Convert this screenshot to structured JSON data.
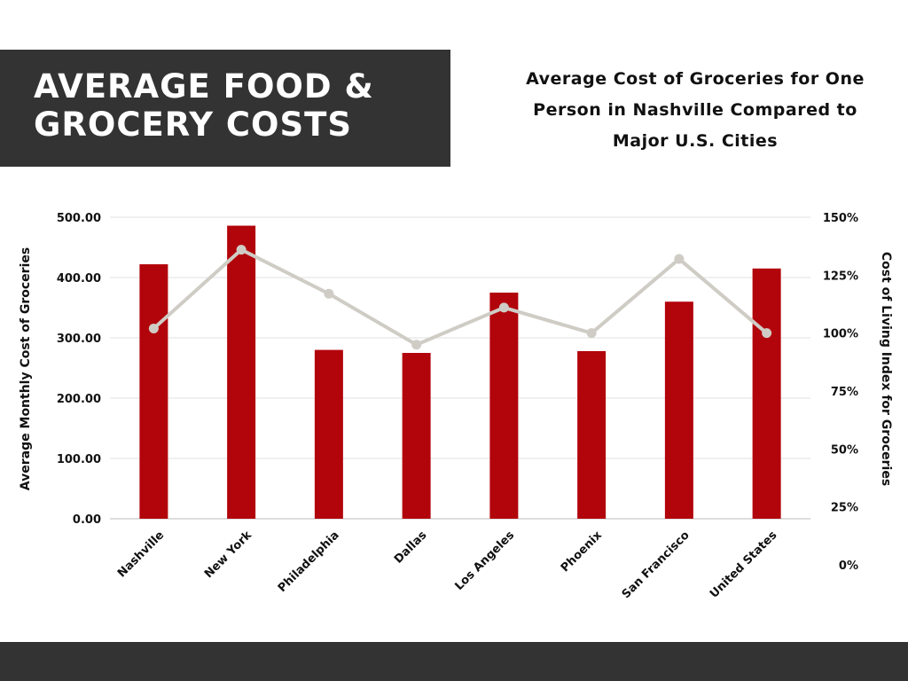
{
  "banner": {
    "line1": "AVERAGE FOOD &",
    "line2": "GROCERY COSTS"
  },
  "chart_title": {
    "line1": "Average Cost of Groceries for One",
    "line2": "Person in Nashville Compared to",
    "line3": "Major U.S. Cities"
  },
  "colors": {
    "bar": "#b2040b",
    "line": "#cfccc5",
    "banner_bg": "#333333"
  },
  "chart_data": {
    "type": "bar",
    "title": "Average Cost of Groceries for One Person in Nashville Compared to Major U.S. Cities",
    "categories": [
      "Nashville",
      "New York",
      "Philadelphia",
      "Dallas",
      "Los Angeles",
      "Phoenix",
      "San Francisco",
      "United States"
    ],
    "series": [
      {
        "type": "bar",
        "axis": "left",
        "values": [
          422,
          486,
          280,
          275,
          375,
          278,
          360,
          415
        ]
      },
      {
        "type": "line",
        "axis": "right",
        "values": [
          102,
          136,
          117,
          95,
          111,
          100,
          132,
          100
        ]
      }
    ],
    "ylabel": "Average Monthly Cost of Groceries",
    "y2label": "Cost of Living Index for Groceries",
    "ylim": [
      0,
      500
    ],
    "y2lim": [
      0,
      150
    ],
    "yticks": [
      "0.00",
      "100.00",
      "200.00",
      "300.00",
      "400.00",
      "500.00"
    ],
    "y2ticks": [
      "0%",
      "25%",
      "50%",
      "75%",
      "100%",
      "125%",
      "150%"
    ],
    "grid": true,
    "legend": "none"
  }
}
